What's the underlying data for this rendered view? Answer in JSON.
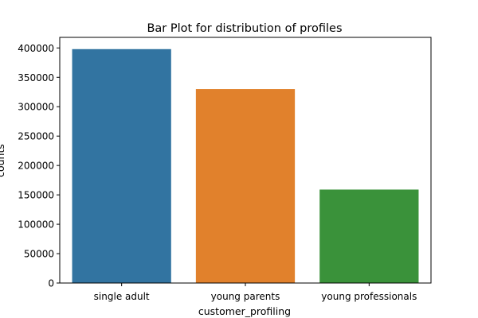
{
  "chart_data": {
    "type": "bar",
    "title": "Bar Plot for distribution of profiles",
    "xlabel": "customer_profiling",
    "ylabel": "counts",
    "categories": [
      "single adult",
      "young parents",
      "young professionals"
    ],
    "values": [
      398000,
      330000,
      159000
    ],
    "colors": [
      "#3274a1",
      "#e1812c",
      "#3a923a"
    ],
    "ylim": [
      0,
      418000
    ],
    "yticks": [
      0,
      50000,
      100000,
      150000,
      200000,
      250000,
      300000,
      350000,
      400000
    ],
    "grid": false
  }
}
